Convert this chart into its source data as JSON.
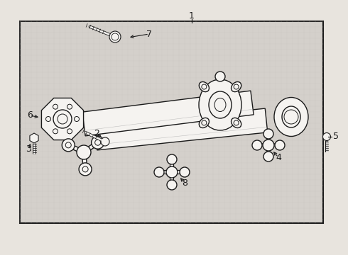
{
  "background_color": "#e8e4de",
  "box_facecolor": "#d8d4ce",
  "line_color": "#1a1a1a",
  "fig_width": 4.9,
  "fig_height": 3.6,
  "dpi": 100
}
